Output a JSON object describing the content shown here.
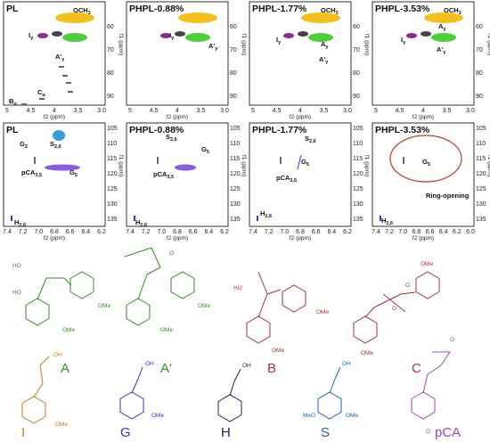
{
  "rows": [
    {
      "x_label": "f2 (ppm)",
      "y_label": "f1 (ppm)",
      "x_ticks": [
        "5",
        "4.5",
        "4",
        "3.5",
        "3.0"
      ],
      "y_ticks": [
        "60",
        "70",
        "80",
        "90"
      ],
      "panels": [
        {
          "title": "PL",
          "annotations": [
            {
              "base": "OCH",
              "sub": "3"
            },
            {
              "base": "I",
              "sub": "γ"
            },
            {
              "base": "A'",
              "sub": "γ"
            },
            {
              "base": "B",
              "sub": "α"
            },
            {
              "base": "C",
              "sub": "α"
            }
          ]
        },
        {
          "title": "PHPL-0.88%",
          "annotations": [
            {
              "base": "I",
              "sub": "γ"
            },
            {
              "base": "A'",
              "sub": "γ"
            }
          ]
        },
        {
          "title": "PHPL-1.77%",
          "annotations": [
            {
              "base": "OCH",
              "sub": "3"
            },
            {
              "base": "A",
              "sub": "γ"
            },
            {
              "base": "I",
              "sub": "γ"
            },
            {
              "base": "A'",
              "sub": "γ"
            }
          ]
        },
        {
          "title": "PHPL-3.53%",
          "annotations": [
            {
              "base": "OCH",
              "sub": "3"
            },
            {
              "base": "A",
              "sub": "γ"
            },
            {
              "base": "I",
              "sub": "γ"
            },
            {
              "base": "A'",
              "sub": "γ"
            }
          ]
        }
      ]
    },
    {
      "x_label": "f2 (ppm)",
      "y_label": "f1 (ppm)",
      "x_ticks": [
        "7.4",
        "7.2",
        "7.0",
        "6.8",
        "6.6",
        "6.4",
        "6.2"
      ],
      "y_ticks": [
        "105",
        "110",
        "115",
        "120",
        "125",
        "130",
        "135"
      ],
      "panels": [
        {
          "title": "PL",
          "annotations": [
            {
              "base": "G",
              "sub": "2"
            },
            {
              "base": "S",
              "sub": "2,6"
            },
            {
              "base": "pCA",
              "sub": "3,5"
            },
            {
              "base": "G",
              "sub": "5"
            },
            {
              "base": "H",
              "sub": "2,6"
            }
          ]
        },
        {
          "title": "PHPL-0.88%",
          "annotations": [
            {
              "base": "S",
              "sub": "2,6"
            },
            {
              "base": "G",
              "sub": "5"
            },
            {
              "base": "pCA",
              "sub": "3,5"
            },
            {
              "base": "H",
              "sub": "2,6"
            }
          ]
        },
        {
          "title": "PHPL-1.77%",
          "annotations": [
            {
              "base": "S",
              "sub": "2,6"
            },
            {
              "base": "G",
              "sub": "5"
            },
            {
              "base": "pCA",
              "sub": "3,5"
            },
            {
              "base": "H",
              "sub": "2,6"
            }
          ]
        },
        {
          "title": "PHPL-3.53%",
          "x_ticks": [
            "7.4",
            "7.2",
            "7.0",
            "6.8",
            "6.6",
            "6.4",
            "6.2",
            "6.0"
          ],
          "annotations": [
            {
              "base": "G",
              "sub": "5"
            },
            {
              "base": "H",
              "sub": "2,6"
            }
          ],
          "note": "Ring-opening"
        }
      ]
    }
  ],
  "structures": [
    {
      "label": "A",
      "groups": [
        "HO",
        "HO",
        "OMe",
        "OMe"
      ]
    },
    {
      "label": "A′",
      "groups": [
        "O",
        "OMe",
        "OMe"
      ]
    },
    {
      "label": "B",
      "groups": [
        "HO",
        "OMe",
        "OMe"
      ]
    },
    {
      "label": "C",
      "groups": [
        "OMe",
        "OMe",
        "O",
        "O"
      ]
    },
    {
      "label": "I",
      "groups": [
        "OH",
        "OMe"
      ]
    },
    {
      "label": "G",
      "groups": [
        "OH",
        "OMe"
      ]
    },
    {
      "label": "H",
      "groups": [
        "OH"
      ]
    },
    {
      "label": "S",
      "groups": [
        "OH",
        "MeO",
        "OMe"
      ]
    },
    {
      "label": "pCA",
      "groups": [
        "O",
        "O"
      ]
    }
  ]
}
